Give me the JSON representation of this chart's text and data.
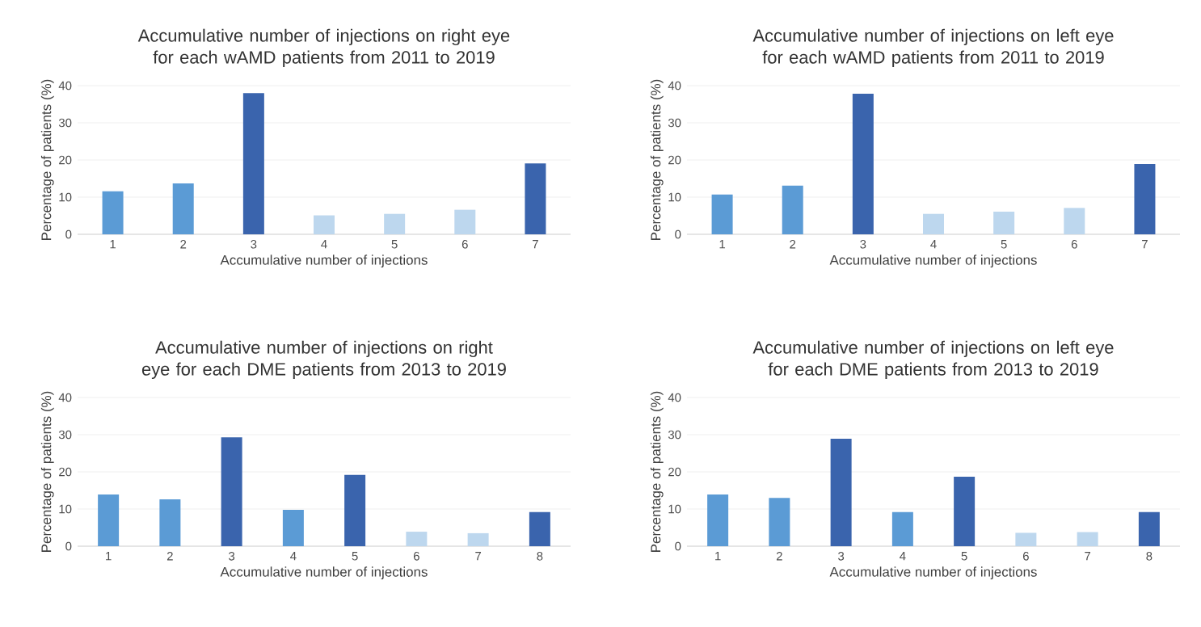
{
  "chart_data": [
    {
      "type": "bar",
      "title": "Accumulative number of injections on right eye for each wAMD patients from 2011 to 2019",
      "xlabel": "Accumulative number of injections",
      "ylabel": "Percentage of patients (%)",
      "categories": [
        "1",
        "2",
        "3",
        "4",
        "5",
        "6",
        "7"
      ],
      "values": [
        11.6,
        13.7,
        38.0,
        5.1,
        5.5,
        6.6,
        19.1
      ],
      "colors": [
        "#5b9bd5",
        "#5b9bd5",
        "#3a64ad",
        "#bdd7ee",
        "#bdd7ee",
        "#bdd7ee",
        "#3a64ad"
      ],
      "ylim": [
        0,
        40
      ],
      "yticks": [
        0,
        10,
        20,
        30,
        40
      ],
      "grid": "y"
    },
    {
      "type": "bar",
      "title": "Accumulative number of injections on left eye for each wAMD patients from 2011 to 2019",
      "xlabel": "Accumulative number of injections",
      "ylabel": "Percentage of patients (%)",
      "categories": [
        "1",
        "2",
        "3",
        "4",
        "5",
        "6",
        "7"
      ],
      "values": [
        10.7,
        13.1,
        37.8,
        5.5,
        6.1,
        7.1,
        18.9
      ],
      "colors": [
        "#5b9bd5",
        "#5b9bd5",
        "#3a64ad",
        "#bdd7ee",
        "#bdd7ee",
        "#bdd7ee",
        "#3a64ad"
      ],
      "ylim": [
        0,
        40
      ],
      "yticks": [
        0,
        10,
        20,
        30,
        40
      ],
      "grid": "y"
    },
    {
      "type": "bar",
      "title": "Accumulative number of injections on right eye for each DME patients from 2013 to 2019",
      "xlabel": "Accumulative number of injections",
      "ylabel": "Percentage of patients (%)",
      "categories": [
        "1",
        "2",
        "3",
        "4",
        "5",
        "6",
        "7",
        "8"
      ],
      "values": [
        13.9,
        12.6,
        29.3,
        9.8,
        19.2,
        3.9,
        3.5,
        9.2
      ],
      "colors": [
        "#5b9bd5",
        "#5b9bd5",
        "#3a64ad",
        "#5b9bd5",
        "#3a64ad",
        "#bdd7ee",
        "#bdd7ee",
        "#3a64ad"
      ],
      "ylim": [
        0,
        40
      ],
      "yticks": [
        0,
        10,
        20,
        30,
        40
      ],
      "grid": "y"
    },
    {
      "type": "bar",
      "title": "Accumulative number of injections on left eye for each DME patients from 2013 to 2019",
      "xlabel": "Accumulative number of injections",
      "ylabel": "Percentage of patients (%)",
      "categories": [
        "1",
        "2",
        "3",
        "4",
        "5",
        "6",
        "7",
        "8"
      ],
      "values": [
        13.9,
        13.0,
        28.9,
        9.2,
        18.7,
        3.6,
        3.8,
        9.2
      ],
      "colors": [
        "#5b9bd5",
        "#5b9bd5",
        "#3a64ad",
        "#5b9bd5",
        "#3a64ad",
        "#bdd7ee",
        "#bdd7ee",
        "#3a64ad"
      ],
      "ylim": [
        0,
        40
      ],
      "yticks": [
        0,
        10,
        20,
        30,
        40
      ],
      "grid": "y"
    }
  ]
}
